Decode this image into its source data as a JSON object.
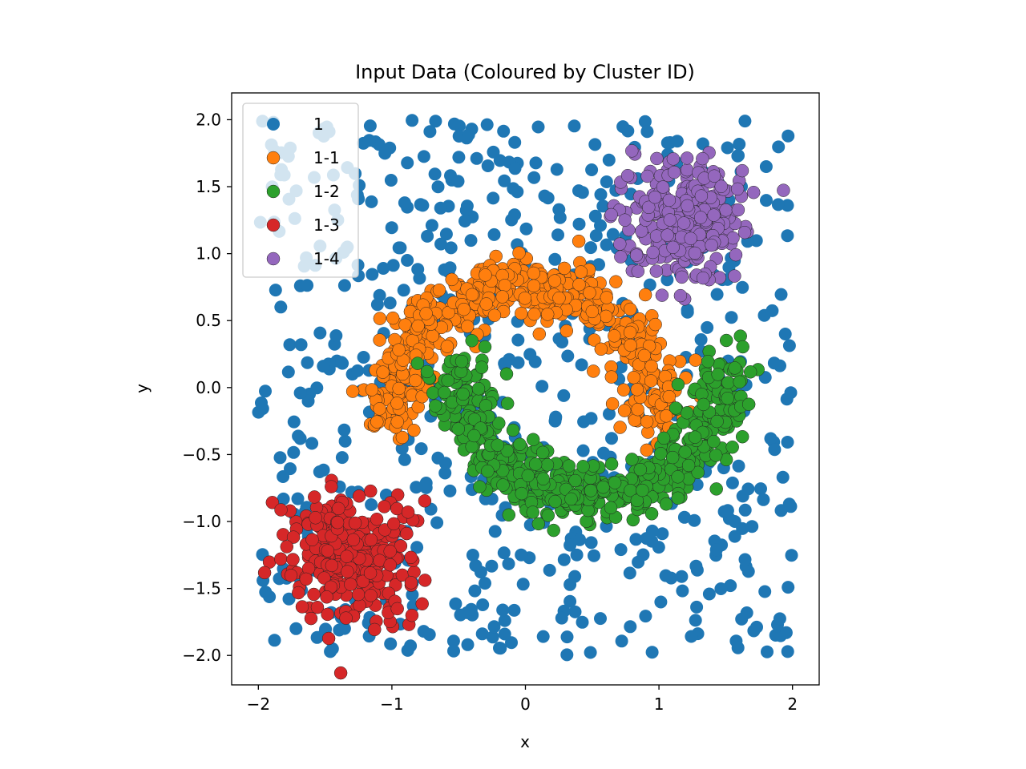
{
  "chart_data": {
    "type": "scatter",
    "title": "Input Data (Coloured by Cluster ID)",
    "xlabel": "x",
    "ylabel": "y",
    "xlim": [
      -2.2,
      2.2
    ],
    "ylim": [
      -2.22,
      2.2
    ],
    "xticks": [
      -2,
      -1,
      0,
      1,
      2
    ],
    "xtick_labels": [
      "−2",
      "−1",
      "0",
      "1",
      "2"
    ],
    "yticks": [
      2.0,
      1.5,
      1.0,
      0.5,
      0.0,
      -0.5,
      -1.0,
      -1.5,
      -2.0
    ],
    "ytick_labels": [
      "2.0",
      "1.5",
      "1.0",
      "0.5",
      "0.0",
      "−0.5",
      "−1.0",
      "−1.5",
      "−2.0"
    ],
    "grid": false,
    "legend_position": "top-left",
    "series": [
      {
        "name": "1",
        "color": "#1f77b4",
        "generator": {
          "kind": "uniform",
          "x_range": [
            -2,
            2
          ],
          "y_range": [
            -2,
            2
          ],
          "count": 650
        },
        "points": []
      },
      {
        "name": "1-1",
        "color": "#ff7f0e",
        "generator": {
          "kind": "arc",
          "center": [
            0,
            -0.25
          ],
          "radius": 1.0,
          "angle_deg": [
            0,
            180
          ],
          "noise": 0.12,
          "count": 520
        },
        "points": []
      },
      {
        "name": "1-2",
        "color": "#2ca02c",
        "generator": {
          "kind": "arc",
          "center": [
            0.5,
            0.2
          ],
          "radius": 1.0,
          "angle_deg": [
            180,
            360
          ],
          "noise": 0.12,
          "count": 520
        },
        "points": []
      },
      {
        "name": "1-3",
        "color": "#d62728",
        "generator": {
          "kind": "blob",
          "center": [
            -1.3,
            -1.25
          ],
          "spread": 0.22,
          "count": 300
        },
        "points": []
      },
      {
        "name": "1-4",
        "color": "#9467bd",
        "generator": {
          "kind": "blob",
          "center": [
            1.2,
            1.25
          ],
          "spread": 0.22,
          "count": 300
        },
        "points": []
      }
    ]
  }
}
